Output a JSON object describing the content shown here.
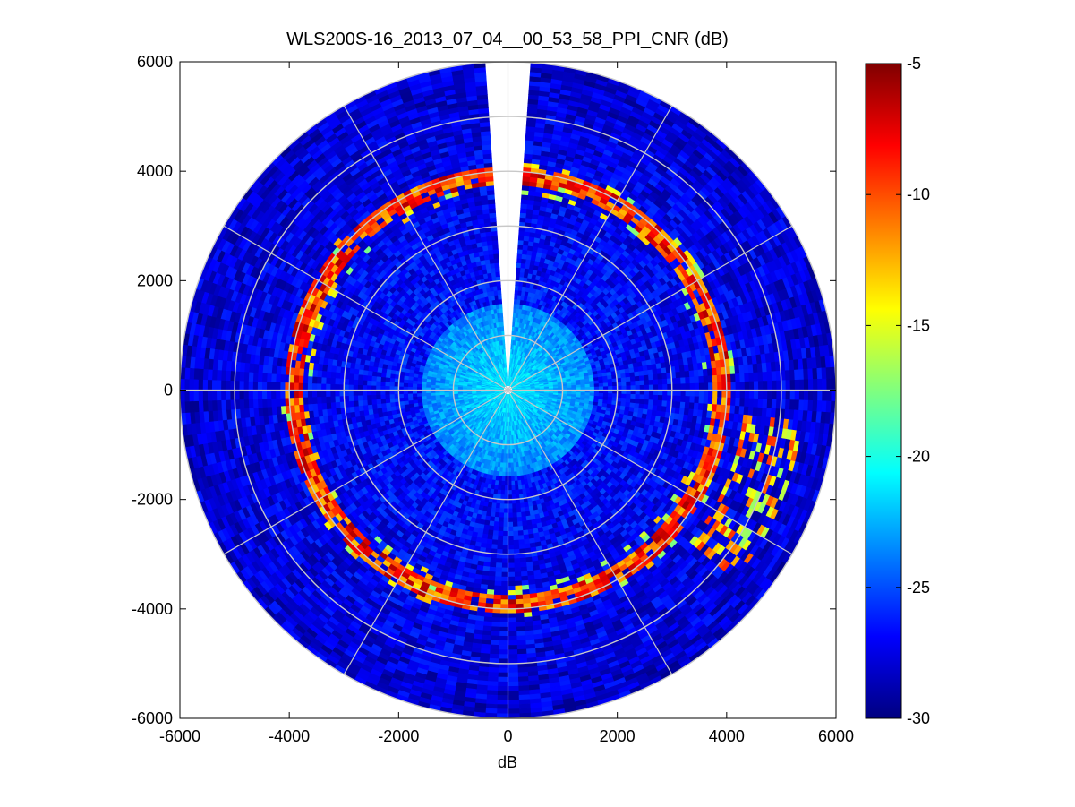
{
  "chart_data": {
    "type": "heatmap",
    "subtype": "polar-ppi",
    "title": "WLS200S-16_2013_07_04__00_53_58_PPI_CNR (dB)",
    "xlabel": "dB",
    "ylabel": "",
    "xlim": [
      -6000,
      6000
    ],
    "ylim": [
      -6000,
      6000
    ],
    "xticks": [
      "-6000",
      "-4000",
      "-2000",
      "0",
      "2000",
      "4000",
      "6000"
    ],
    "yticks": [
      "6000",
      "4000",
      "2000",
      "0",
      "-2000",
      "-4000",
      "-6000"
    ],
    "grid": true,
    "grid_rings": [
      1000,
      2000,
      3000,
      4000,
      5000,
      6000
    ],
    "grid_spokes_deg": [
      0,
      30,
      60,
      90,
      120,
      150,
      180,
      210,
      240,
      270,
      300,
      330
    ],
    "max_range": 6000,
    "missing_sector_deg": [
      -4,
      4
    ],
    "colormap": "jet",
    "colorbar": {
      "range": [
        -30,
        -5
      ],
      "ticks": [
        "-5",
        "-10",
        "-15",
        "-20",
        "-25",
        "-30"
      ],
      "placement": "right"
    },
    "ring_features": [
      {
        "range_approx": 3900,
        "value_approx_db": -5,
        "description": "strong return ring"
      },
      {
        "range_approx": 4500,
        "value_approx_db": -10,
        "description": "east-southeast outer echoes"
      }
    ],
    "center_values_approx_db": -20,
    "background_values_approx_db": -26
  }
}
